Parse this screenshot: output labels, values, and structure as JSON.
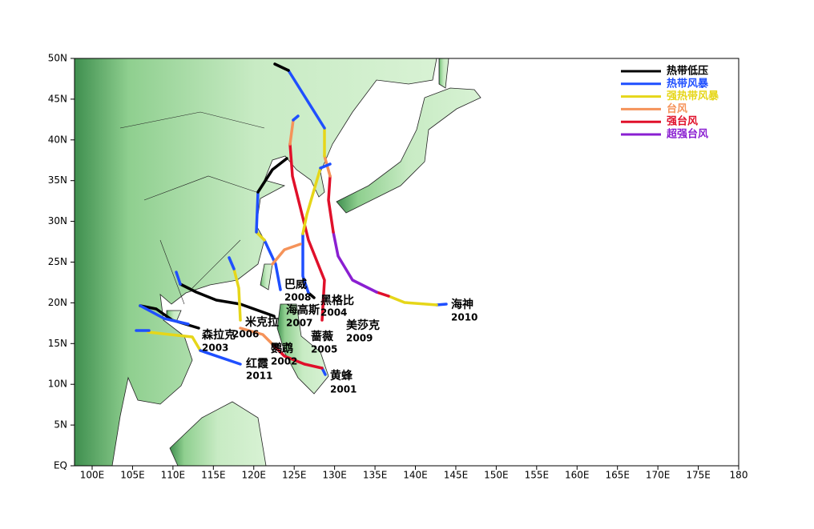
{
  "map": {
    "xticks": [
      {
        "value": 100,
        "label": "100E"
      },
      {
        "value": 105,
        "label": "105E"
      },
      {
        "value": 110,
        "label": "110E"
      },
      {
        "value": 115,
        "label": "115E"
      },
      {
        "value": 120,
        "label": "120E"
      },
      {
        "value": 125,
        "label": "125E"
      },
      {
        "value": 130,
        "label": "130E"
      },
      {
        "value": 135,
        "label": "135E"
      },
      {
        "value": 140,
        "label": "140E"
      },
      {
        "value": 145,
        "label": "145E"
      },
      {
        "value": 150,
        "label": "150E"
      },
      {
        "value": 155,
        "label": "155E"
      },
      {
        "value": 160,
        "label": "160E"
      },
      {
        "value": 165,
        "label": "165E"
      },
      {
        "value": 170,
        "label": "170E"
      },
      {
        "value": 175,
        "label": "175E"
      },
      {
        "value": 180,
        "label": "180"
      }
    ],
    "yticks": [
      {
        "value": 0,
        "label": "EQ"
      },
      {
        "value": 5,
        "label": "5N"
      },
      {
        "value": 10,
        "label": "10N"
      },
      {
        "value": 15,
        "label": "15N"
      },
      {
        "value": 20,
        "label": "20N"
      },
      {
        "value": 25,
        "label": "25N"
      },
      {
        "value": 30,
        "label": "30N"
      },
      {
        "value": 35,
        "label": "35N"
      },
      {
        "value": 40,
        "label": "40N"
      },
      {
        "value": 45,
        "label": "45N"
      },
      {
        "value": 50,
        "label": "50N"
      }
    ],
    "legend": [
      {
        "label": "热带低压",
        "color": "#000000"
      },
      {
        "label": "热带风暴",
        "color": "#1f4fff"
      },
      {
        "label": "强热带风暴",
        "color": "#e6d619"
      },
      {
        "label": "台风",
        "color": "#f5935a"
      },
      {
        "label": "强台风",
        "color": "#e0102a"
      },
      {
        "label": "超强台风",
        "color": "#8a1fd1"
      }
    ],
    "storms": [
      {
        "name": "黄蜂",
        "year": "2001"
      },
      {
        "name": "鹦鹉",
        "year": "2002"
      },
      {
        "name": "森拉克",
        "year": "2003"
      },
      {
        "name": "黑格比",
        "year": "2004"
      },
      {
        "name": "蔷薇",
        "year": "2005"
      },
      {
        "name": "米克拉",
        "year": "2006"
      },
      {
        "name": "海高斯",
        "year": "2007"
      },
      {
        "name": "巴威",
        "year": "2008"
      },
      {
        "name": "美莎克",
        "year": "2009"
      },
      {
        "name": "海神",
        "year": "2010"
      },
      {
        "name": "红霞",
        "year": "2011"
      }
    ]
  }
}
